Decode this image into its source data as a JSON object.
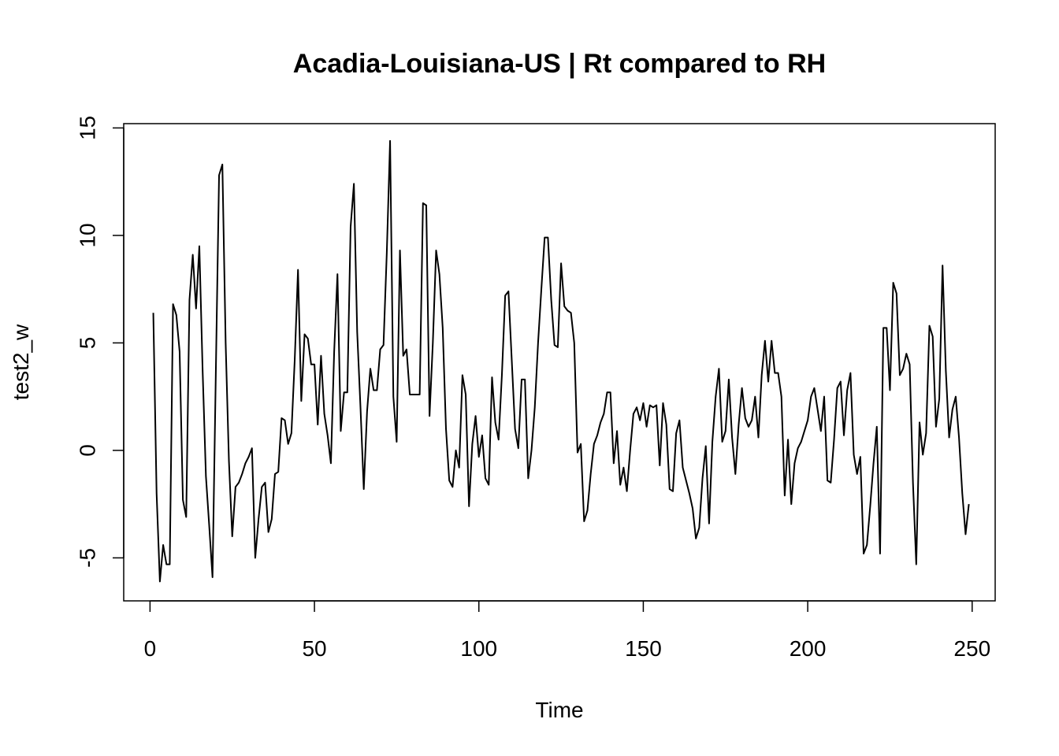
{
  "chart_data": {
    "type": "line",
    "title": "Acadia-Louisiana-US | Rt compared to RH",
    "xlabel": "Time",
    "ylabel": "test2_w",
    "xlim": [
      -8,
      257
    ],
    "ylim": [
      -7,
      15.2
    ],
    "x_ticks": [
      0,
      50,
      100,
      150,
      200,
      250
    ],
    "y_ticks": [
      -5,
      0,
      5,
      10,
      15
    ],
    "x_tick_labels": [
      "0",
      "50",
      "100",
      "150",
      "200",
      "250"
    ],
    "y_tick_labels": [
      "-5",
      "0",
      "5",
      "10",
      "15"
    ],
    "grid": false,
    "legend": "none",
    "colors": {
      "line": "#000000",
      "axes": "#000000",
      "background": "#ffffff"
    },
    "x_start": 1,
    "x_step": 1,
    "series": [
      {
        "values": [
          6.4,
          -2.0,
          -6.1,
          -4.4,
          -5.3,
          -5.3,
          6.8,
          6.3,
          4.6,
          -2.3,
          -3.1,
          7.0,
          9.1,
          6.6,
          9.5,
          3.7,
          -1.2,
          -3.5,
          -5.9,
          3.5,
          12.8,
          13.3,
          5.0,
          -0.5,
          -4.0,
          -1.7,
          -1.5,
          -1.1,
          -0.6,
          -0.3,
          0.1,
          -5.0,
          -3.2,
          -1.7,
          -1.5,
          -3.8,
          -3.2,
          -1.1,
          -1.0,
          1.5,
          1.4,
          0.3,
          0.8,
          4.2,
          8.4,
          2.3,
          5.4,
          5.2,
          4.0,
          4.0,
          1.2,
          4.4,
          1.7,
          0.7,
          -0.6,
          4.6,
          8.2,
          0.9,
          2.7,
          2.7,
          10.4,
          12.4,
          5.5,
          2.0,
          -1.8,
          1.8,
          3.8,
          2.8,
          2.8,
          4.7,
          4.9,
          9.2,
          14.4,
          2.5,
          0.4,
          9.3,
          4.4,
          4.7,
          2.6,
          2.6,
          2.6,
          2.6,
          11.5,
          11.4,
          1.6,
          5.0,
          9.3,
          8.2,
          5.7,
          1.0,
          -1.4,
          -1.7,
          0.0,
          -0.8,
          3.5,
          2.6,
          -2.6,
          0.3,
          1.6,
          -0.3,
          0.7,
          -1.3,
          -1.6,
          3.4,
          1.3,
          0.5,
          3.5,
          7.2,
          7.4,
          4.2,
          1.0,
          0.1,
          3.3,
          3.3,
          -1.3,
          0.0,
          2.0,
          5.0,
          7.5,
          9.9,
          9.9,
          7.0,
          4.9,
          4.8,
          8.7,
          6.7,
          6.5,
          6.4,
          5.0,
          -0.1,
          0.3,
          -3.3,
          -2.8,
          -1.1,
          0.3,
          0.7,
          1.3,
          1.7,
          2.7,
          2.7,
          -0.6,
          0.9,
          -1.6,
          -0.8,
          -1.9,
          0.0,
          1.7,
          2.0,
          1.4,
          2.2,
          1.1,
          2.1,
          2.0,
          2.1,
          -0.7,
          2.2,
          1.2,
          -1.8,
          -1.9,
          0.8,
          1.4,
          -0.8,
          -1.4,
          -2.0,
          -2.7,
          -4.1,
          -3.6,
          -1.3,
          0.2,
          -3.4,
          0.4,
          2.5,
          3.8,
          0.4,
          0.9,
          3.3,
          0.6,
          -1.1,
          1.2,
          2.9,
          1.5,
          1.1,
          1.4,
          2.5,
          0.6,
          3.5,
          5.1,
          3.2,
          5.1,
          3.6,
          3.6,
          2.5,
          -2.1,
          0.5,
          -2.5,
          -0.6,
          0.1,
          0.4,
          0.9,
          1.4,
          2.5,
          2.9,
          1.9,
          0.9,
          2.5,
          -1.4,
          -1.5,
          0.5,
          2.9,
          3.2,
          0.7,
          2.8,
          3.6,
          -0.2,
          -1.1,
          -0.3,
          -4.8,
          -4.4,
          -2.6,
          -0.6,
          1.1,
          -4.8,
          5.7,
          5.7,
          2.8,
          7.8,
          7.3,
          3.5,
          3.8,
          4.5,
          4.0,
          -1.5,
          -5.3,
          1.3,
          -0.2,
          0.8,
          5.8,
          5.3,
          1.1,
          2.4,
          8.6,
          3.7,
          0.6,
          1.9,
          2.5,
          0.6,
          -2.0,
          -3.9,
          -2.5
        ]
      }
    ]
  }
}
